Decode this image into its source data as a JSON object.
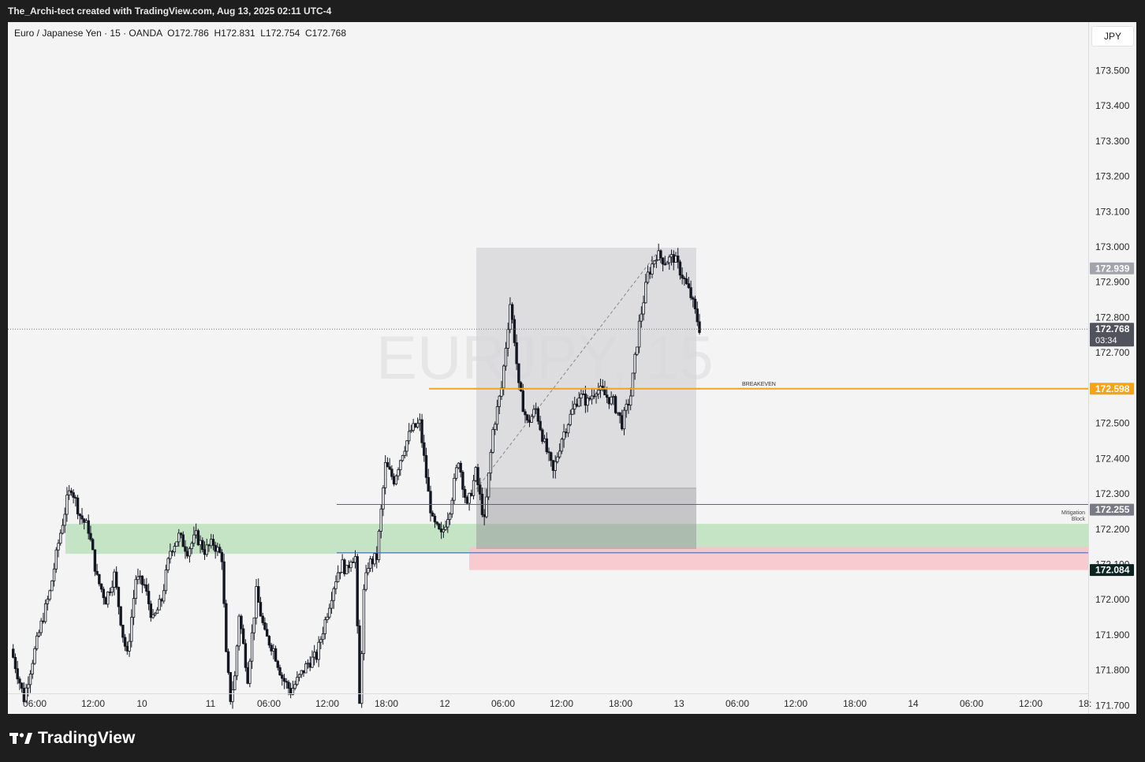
{
  "header": {
    "title": "The_Archi-tect created with TradingView.com, Aug 13, 2025 02:11 UTC-4"
  },
  "legend": {
    "symbol": "Euro / Japanese Yen · 15 · OANDA",
    "open": "O172.786",
    "high": "H172.831",
    "low": "L172.754",
    "close": "C172.768"
  },
  "currency_button": "JPY",
  "footer": {
    "brand": "TradingView"
  },
  "colors": {
    "background": "#f4f4f4",
    "candle": "#131722",
    "breakeven": "#f7a21b",
    "blue_line": "#3f67b5",
    "mitigation_zone": "#b5dfb7",
    "red_zone": "#f7c3c9",
    "grey_box": "#d6d6d8",
    "price_tag_dark": "#0b2422",
    "price_tag_grey": "#787b86"
  },
  "chart_data": {
    "type": "candlestick",
    "watermark": "EURJPY, 15",
    "y_axis": {
      "min": 171.65,
      "max": 173.55,
      "ticks": [
        "173.500",
        "173.400",
        "173.300",
        "173.200",
        "173.100",
        "173.000",
        "172.900",
        "172.800",
        "172.700",
        "172.600",
        "172.500",
        "172.400",
        "172.300",
        "172.200",
        "172.100",
        "172.000",
        "171.900",
        "171.800",
        "171.700"
      ]
    },
    "x_axis": {
      "ticks": [
        "06:00",
        "12:00",
        "10",
        "11",
        "06:00",
        "12:00",
        "18:00",
        "12",
        "06:00",
        "12:00",
        "18:00",
        "13",
        "06:00",
        "12:00",
        "18:00",
        "14",
        "06:00",
        "12:00",
        "18:"
      ]
    },
    "price_path": [
      [
        0,
        171.86
      ],
      [
        3,
        171.72
      ],
      [
        5,
        171.83
      ],
      [
        7,
        171.93
      ],
      [
        9,
        172.02
      ],
      [
        11,
        172.16
      ],
      [
        13,
        172.28
      ],
      [
        14,
        172.32
      ],
      [
        16,
        172.24
      ],
      [
        18,
        172.2
      ],
      [
        20,
        172.06
      ],
      [
        22,
        172.0
      ],
      [
        24,
        172.07
      ],
      [
        26,
        171.9
      ],
      [
        27,
        171.84
      ],
      [
        29,
        172.06
      ],
      [
        31,
        172.04
      ],
      [
        33,
        171.94
      ],
      [
        35,
        172.0
      ],
      [
        37,
        172.14
      ],
      [
        39,
        172.18
      ],
      [
        41,
        172.14
      ],
      [
        43,
        172.18
      ],
      [
        45,
        172.14
      ],
      [
        47,
        172.16
      ],
      [
        49,
        172.12
      ],
      [
        50,
        171.84
      ],
      [
        51,
        171.72
      ],
      [
        52,
        171.78
      ],
      [
        53,
        171.96
      ],
      [
        55,
        171.78
      ],
      [
        57,
        172.02
      ],
      [
        59,
        171.9
      ],
      [
        61,
        171.86
      ],
      [
        63,
        171.78
      ],
      [
        65,
        171.74
      ],
      [
        67,
        171.78
      ],
      [
        69,
        171.82
      ],
      [
        71,
        171.84
      ],
      [
        73,
        171.94
      ],
      [
        75,
        172.04
      ],
      [
        76,
        172.08
      ],
      [
        77,
        172.1
      ],
      [
        78,
        172.08
      ],
      [
        79,
        172.12
      ],
      [
        80,
        172.12
      ],
      [
        81,
        171.7
      ],
      [
        82,
        172.02
      ],
      [
        83,
        172.1
      ],
      [
        85,
        172.12
      ],
      [
        87,
        172.38
      ],
      [
        89,
        172.34
      ],
      [
        91,
        172.42
      ],
      [
        93,
        172.48
      ],
      [
        95,
        172.5
      ],
      [
        97,
        172.3
      ],
      [
        98,
        172.22
      ],
      [
        100,
        172.18
      ],
      [
        102,
        172.26
      ],
      [
        104,
        172.4
      ],
      [
        106,
        172.26
      ],
      [
        108,
        172.36
      ],
      [
        110,
        172.22
      ],
      [
        112,
        172.48
      ],
      [
        114,
        172.6
      ],
      [
        116,
        172.84
      ],
      [
        117,
        172.74
      ],
      [
        118,
        172.6
      ],
      [
        120,
        172.5
      ],
      [
        122,
        172.54
      ],
      [
        124,
        172.44
      ],
      [
        126,
        172.36
      ],
      [
        128,
        172.46
      ],
      [
        130,
        172.52
      ],
      [
        132,
        172.58
      ],
      [
        134,
        172.56
      ],
      [
        136,
        172.6
      ],
      [
        138,
        172.58
      ],
      [
        140,
        172.56
      ],
      [
        142,
        172.5
      ],
      [
        144,
        172.58
      ],
      [
        146,
        172.78
      ],
      [
        148,
        172.92
      ],
      [
        150,
        172.98
      ],
      [
        152,
        172.96
      ],
      [
        154,
        172.97
      ],
      [
        156,
        172.92
      ],
      [
        158,
        172.86
      ],
      [
        160,
        172.77
      ]
    ],
    "annotations": {
      "breakeven": {
        "label": "BREAKEVEN",
        "price": 172.598
      },
      "blue_line_upper": {
        "price": 172.27
      },
      "blue_line_lower": {
        "price": 172.133
      },
      "mitigation_block": {
        "label": "Mitigation Block",
        "from": 172.13,
        "to": 172.215
      },
      "red_zone": {
        "from": 172.084,
        "to": 172.15
      },
      "current_price": {
        "price": 172.768,
        "countdown": "03:34"
      }
    },
    "price_labels": {
      "tp": "172.939",
      "current": "172.768",
      "countdown": "03:34",
      "breakeven": "172.598",
      "entry": "172.255",
      "stop": "172.084"
    }
  }
}
